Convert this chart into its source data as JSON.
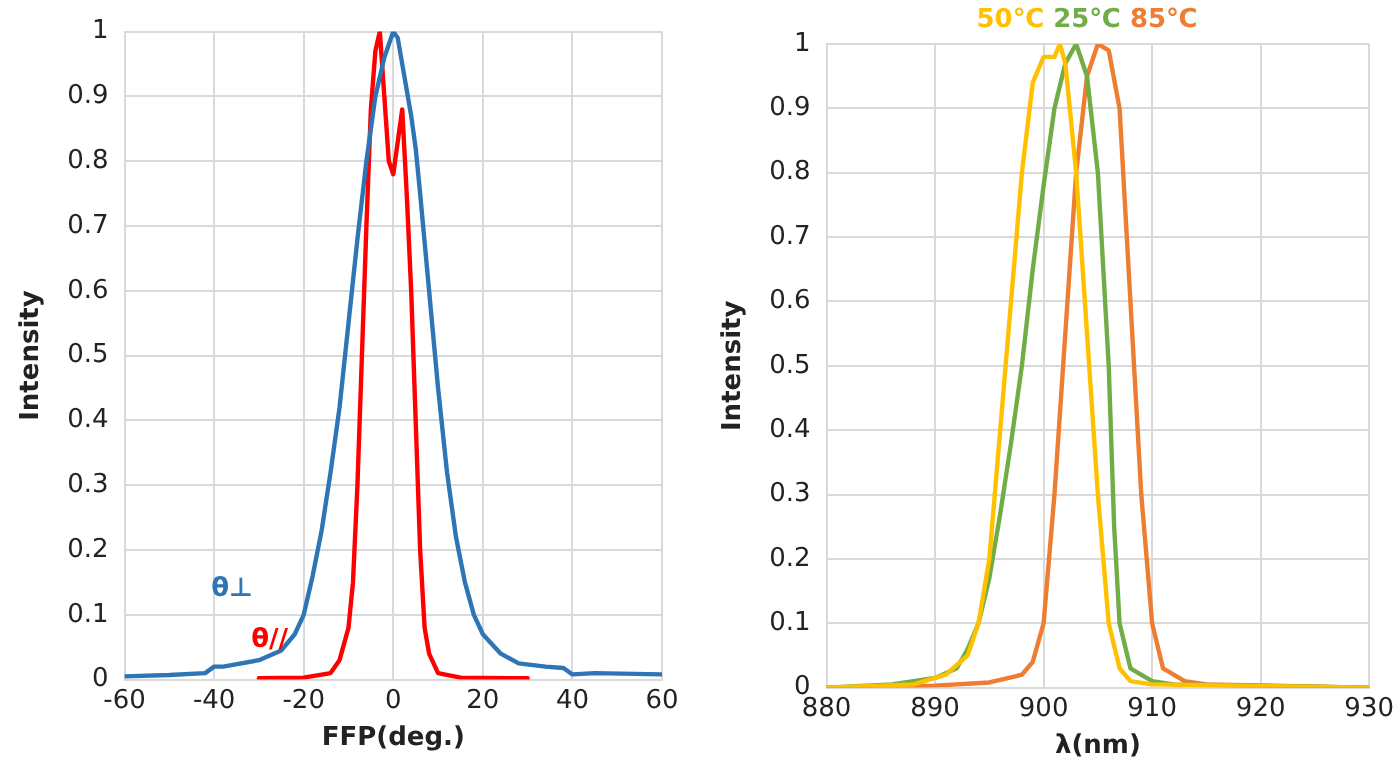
{
  "chart_data": [
    {
      "type": "line",
      "xlabel": "FFP(deg.)",
      "ylabel": "Intensity",
      "xlim": [
        -60,
        60
      ],
      "xticks": [
        -60,
        -40,
        -20,
        0,
        20,
        40,
        60
      ],
      "ylim": [
        0,
        1
      ],
      "yticks": [
        0,
        0.1,
        0.2,
        0.3,
        0.4,
        0.5,
        0.6,
        0.7,
        0.8,
        0.9,
        1
      ],
      "grid": true,
      "legend": false,
      "marker": "none",
      "series": [
        {
          "name": "θ⊥",
          "color": "#2e75b6",
          "x": [
            -60,
            -50,
            -42,
            -40,
            -38,
            -30,
            -25,
            -22,
            -20,
            -18,
            -16,
            -14,
            -12,
            -10,
            -8,
            -6,
            -4,
            -2,
            0,
            1,
            2,
            4,
            5,
            6,
            8,
            10,
            12,
            14,
            16,
            18,
            20,
            24,
            28,
            34,
            38,
            40,
            45,
            60
          ],
          "values": [
            0.005,
            0.007,
            0.01,
            0.02,
            0.02,
            0.03,
            0.045,
            0.07,
            0.1,
            0.16,
            0.23,
            0.32,
            0.42,
            0.55,
            0.68,
            0.8,
            0.9,
            0.96,
            1.0,
            0.99,
            0.95,
            0.87,
            0.82,
            0.75,
            0.6,
            0.45,
            0.32,
            0.22,
            0.15,
            0.1,
            0.07,
            0.04,
            0.025,
            0.02,
            0.018,
            0.008,
            0.01,
            0.008
          ]
        },
        {
          "name": "θ//",
          "color": "#ff0000",
          "x": [
            -30,
            -20,
            -14,
            -12,
            -10,
            -9,
            -8,
            -7,
            -6,
            -5,
            -4,
            -3,
            -2,
            -1,
            0,
            1,
            2,
            3,
            4,
            5,
            6,
            7,
            8,
            10,
            15,
            30
          ],
          "values": [
            0.002,
            0.003,
            0.01,
            0.03,
            0.08,
            0.15,
            0.3,
            0.5,
            0.7,
            0.88,
            0.97,
            1.0,
            0.9,
            0.8,
            0.78,
            0.83,
            0.88,
            0.75,
            0.6,
            0.4,
            0.2,
            0.08,
            0.04,
            0.01,
            0.003,
            0.002
          ]
        }
      ]
    },
    {
      "type": "line",
      "xlabel": "λ(nm)",
      "ylabel": "Intensity",
      "xlim": [
        880,
        930
      ],
      "xticks": [
        880,
        890,
        900,
        910,
        920,
        930
      ],
      "ylim": [
        0,
        1
      ],
      "yticks": [
        0,
        0.1,
        0.2,
        0.3,
        0.4,
        0.5,
        0.6,
        0.7,
        0.8,
        0.9,
        1
      ],
      "grid": true,
      "legend": false,
      "marker": "none",
      "series": [
        {
          "name": "50℃",
          "color": "#ffc000",
          "x": [
            880,
            888,
            891,
            893,
            894,
            895,
            896,
            897,
            898,
            899,
            900,
            901,
            901.5,
            902,
            903,
            904,
            905,
            906,
            907,
            908,
            910,
            930
          ],
          "values": [
            0,
            0.005,
            0.02,
            0.05,
            0.1,
            0.2,
            0.4,
            0.6,
            0.8,
            0.94,
            0.98,
            0.98,
            1.0,
            0.97,
            0.8,
            0.55,
            0.3,
            0.1,
            0.03,
            0.01,
            0.005,
            0
          ]
        },
        {
          "name": "25℃",
          "color": "#70ad47",
          "x": [
            880,
            886,
            890,
            892,
            893,
            894,
            895,
            896,
            897,
            898,
            899,
            900,
            901,
            902,
            903,
            904,
            905,
            906,
            906.5,
            907,
            908,
            910,
            912,
            930
          ],
          "values": [
            0,
            0.005,
            0.015,
            0.03,
            0.06,
            0.1,
            0.17,
            0.27,
            0.38,
            0.5,
            0.65,
            0.78,
            0.9,
            0.97,
            1.0,
            0.95,
            0.8,
            0.5,
            0.25,
            0.1,
            0.03,
            0.01,
            0.005,
            0
          ]
        },
        {
          "name": "85℃",
          "color": "#ed7d31",
          "x": [
            880,
            890,
            895,
            898,
            899,
            900,
            901,
            902,
            903,
            904,
            905,
            906,
            907,
            908,
            909,
            910,
            911,
            913,
            915,
            930
          ],
          "values": [
            0,
            0.003,
            0.008,
            0.02,
            0.04,
            0.1,
            0.3,
            0.55,
            0.8,
            0.95,
            1.0,
            0.99,
            0.9,
            0.6,
            0.3,
            0.1,
            0.03,
            0.01,
            0.005,
            0
          ]
        }
      ]
    }
  ]
}
